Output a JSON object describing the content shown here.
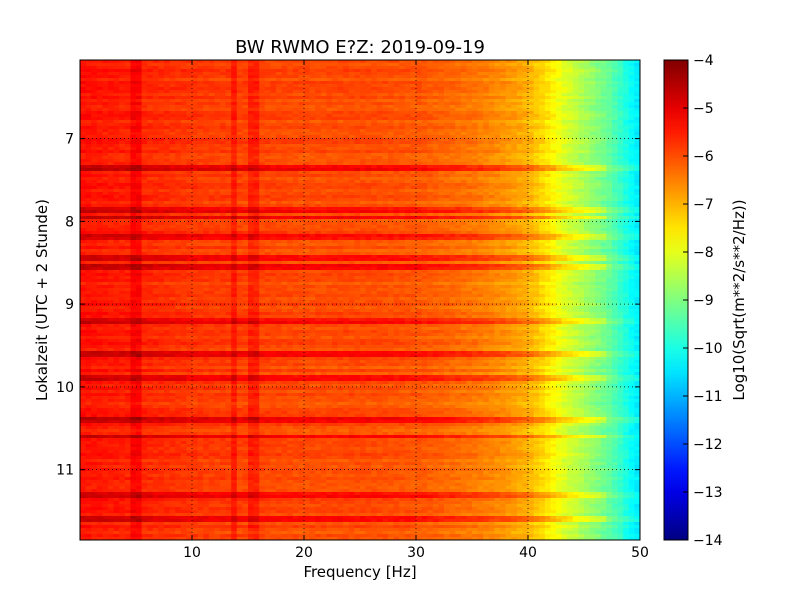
{
  "chart_data": {
    "type": "heatmap",
    "title": "BW RWMO E?Z: 2019-09-19",
    "xlabel": "Frequency [Hz]",
    "ylabel": "Lokalzeit (UTC + 2 Stunde)",
    "xlim": [
      0,
      50
    ],
    "ylim": [
      6.05,
      11.85
    ],
    "y_inverted": true,
    "x_ticks": [
      10,
      20,
      30,
      40,
      50
    ],
    "x_tick_labels": [
      "10",
      "20",
      "30",
      "40",
      "50"
    ],
    "y_ticks": [
      7,
      8,
      9,
      10,
      11
    ],
    "y_tick_labels": [
      "7",
      "8",
      "9",
      "10",
      "11"
    ],
    "grid": true,
    "colormap": "jet",
    "colorbar": {
      "label": "Log10(Sqrt(m**2/s**2/Hz))",
      "range": [
        -14,
        -4
      ],
      "ticks": [
        -4,
        -5,
        -6,
        -7,
        -8,
        -9,
        -10,
        -11,
        -12,
        -13,
        -14
      ],
      "tick_labels": [
        "−4",
        "−5",
        "−6",
        "−7",
        "−8",
        "−9",
        "−10",
        "−11",
        "−12",
        "−13",
        "−14"
      ]
    },
    "spectral_profile": {
      "frequency_hz": [
        0,
        5,
        10,
        15,
        20,
        25,
        30,
        35,
        38,
        40,
        42,
        43,
        44,
        45,
        46,
        47,
        48,
        49,
        50
      ],
      "log10_amplitude": [
        -5.4,
        -5.6,
        -5.8,
        -5.9,
        -6.0,
        -6.0,
        -6.1,
        -6.4,
        -6.7,
        -7.0,
        -7.6,
        -8.0,
        -8.3,
        -8.6,
        -8.9,
        -9.2,
        -9.6,
        -10.1,
        -10.5
      ]
    },
    "high_amplitude_bands_local_time": [
      7.35,
      7.85,
      7.95,
      8.2,
      8.45,
      8.55,
      9.2,
      9.6,
      9.9,
      10.4,
      10.6,
      11.3,
      11.6
    ],
    "narrowband_lines_hz": [
      5,
      13.8,
      15.5
    ]
  }
}
